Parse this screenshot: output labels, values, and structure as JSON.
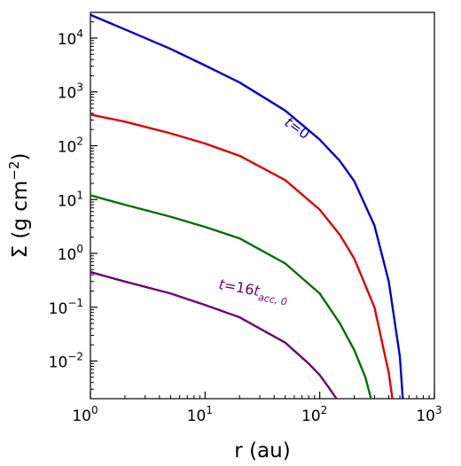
{
  "chart_data": {
    "type": "line",
    "title": "",
    "xlabel": "r (au)",
    "ylabel_main": "Σ (g cm",
    "ylabel_exp": "−2",
    "ylabel_close": ")",
    "xscale": "log",
    "yscale": "log",
    "xlim": [
      1,
      1000
    ],
    "ylim": [
      0.002,
      30000
    ],
    "grid": false,
    "x_ticks": [
      {
        "base": "10",
        "exp": "0",
        "value": 1
      },
      {
        "base": "10",
        "exp": "1",
        "value": 10
      },
      {
        "base": "10",
        "exp": "2",
        "value": 100
      },
      {
        "base": "10",
        "exp": "3",
        "value": 1000
      }
    ],
    "y_ticks": [
      {
        "base": "10",
        "exp": "−2",
        "value": 0.01
      },
      {
        "base": "10",
        "exp": "−1",
        "value": 0.1
      },
      {
        "base": "10",
        "exp": "0",
        "value": 1
      },
      {
        "base": "10",
        "exp": "1",
        "value": 10
      },
      {
        "base": "10",
        "exp": "2",
        "value": 100
      },
      {
        "base": "10",
        "exp": "3",
        "value": 1000
      },
      {
        "base": "10",
        "exp": "4",
        "value": 10000
      }
    ],
    "series": [
      {
        "color": "#0000cc",
        "x": [
          1,
          2,
          5,
          10,
          20,
          50,
          100,
          150,
          200,
          300,
          400,
          500,
          530
        ],
        "y": [
          27000,
          14500,
          6300,
          3100,
          1500,
          450,
          130,
          52,
          22,
          3.3,
          0.3,
          0.012,
          0.002
        ]
      },
      {
        "color": "#e00000",
        "x": [
          1,
          2,
          5,
          10,
          20,
          50,
          100,
          150,
          200,
          300,
          400,
          430
        ],
        "y": [
          380,
          280,
          170,
          110,
          65,
          23,
          6.5,
          2.2,
          0.8,
          0.1,
          0.006,
          0.002
        ]
      },
      {
        "color": "#007000",
        "x": [
          1,
          2,
          5,
          10,
          20,
          50,
          100,
          150,
          200,
          250,
          280
        ],
        "y": [
          12,
          8,
          4.8,
          3.1,
          1.9,
          0.65,
          0.18,
          0.05,
          0.016,
          0.005,
          0.002
        ]
      },
      {
        "color": "#700070",
        "x": [
          1,
          2,
          5,
          10,
          20,
          50,
          80,
          100,
          120,
          140
        ],
        "y": [
          0.45,
          0.3,
          0.18,
          0.11,
          0.065,
          0.022,
          0.009,
          0.0055,
          0.0032,
          0.002
        ]
      }
    ],
    "annotations": [
      {
        "text": "t",
        "eq": "=0",
        "color": "#0000cc",
        "x": 60,
        "y": 180,
        "angle": 36
      },
      {
        "text": "t",
        "eq": "=16",
        "sym": "t",
        "sub": "acc, 0",
        "color": "#700070",
        "x": 26,
        "y": 0.17,
        "angle": 10
      }
    ]
  }
}
